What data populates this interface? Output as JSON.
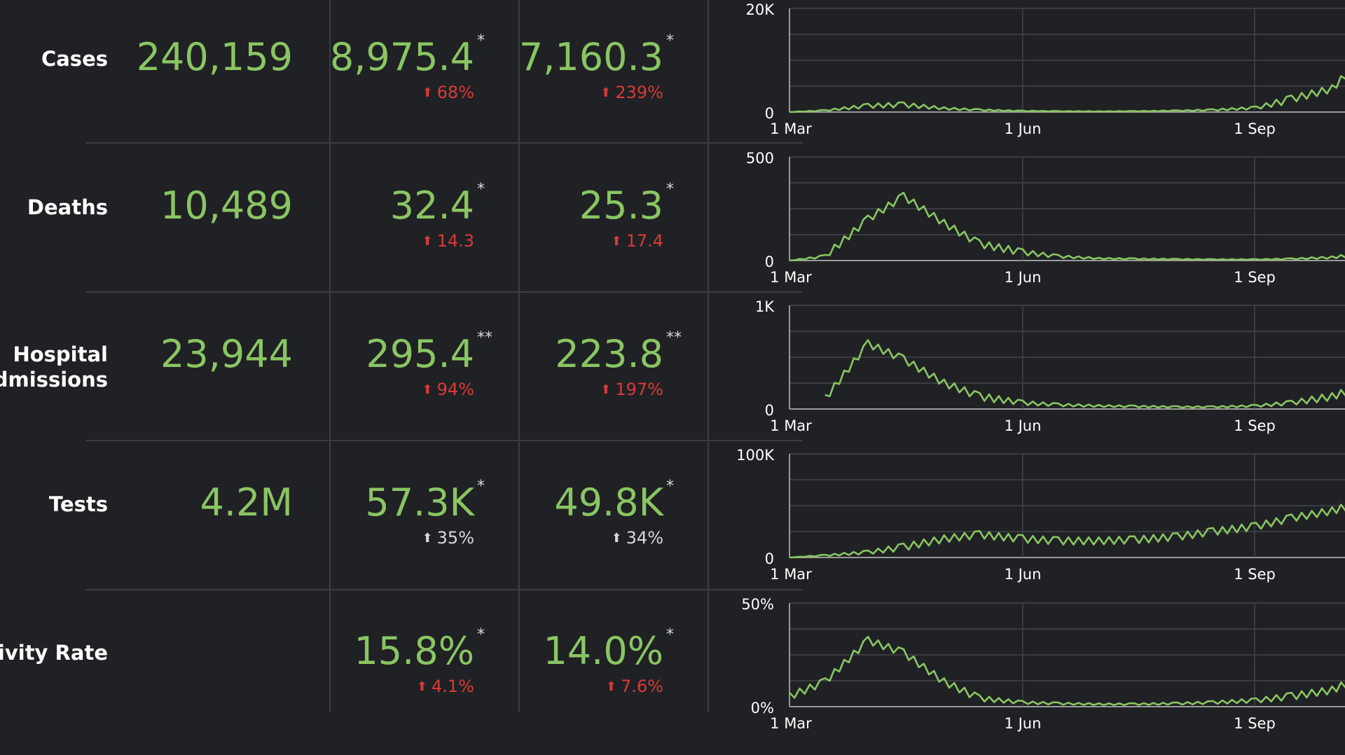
{
  "rows": [
    {
      "label": "Cases",
      "total": "240,159",
      "avg1": "8,975.4",
      "avg1_star": "*",
      "change1": "68%",
      "change1_color": "red",
      "avg2": "7,160.3",
      "avg2_star": "*",
      "change2": "239%",
      "change2_color": "red"
    },
    {
      "label": "Deaths",
      "total": "10,489",
      "avg1": "32.4",
      "avg1_star": "*",
      "change1": "14.3",
      "change1_color": "red",
      "avg2": "25.3",
      "avg2_star": "*",
      "change2": "17.4",
      "change2_color": "red"
    },
    {
      "label_line1": "Hospital",
      "label_line2": "Admissions",
      "total": "23,944",
      "avg1": "295.4",
      "avg1_star": "**",
      "change1": "94%",
      "change1_color": "red",
      "avg2": "223.8",
      "avg2_star": "**",
      "change2": "197%",
      "change2_color": "red"
    },
    {
      "label": "Tests",
      "total": "4.2M",
      "avg1": "57.3K",
      "avg1_star": "*",
      "change1": "35%",
      "change1_color": "grey",
      "avg2": "49.8K",
      "avg2_star": "*",
      "change2": "34%",
      "change2_color": "grey"
    },
    {
      "label": "Positivity Rate",
      "total": "",
      "avg1": "15.8%",
      "avg1_star": "*",
      "change1": "4.1%",
      "change1_color": "red",
      "avg2": "14.0%",
      "avg2_star": "*",
      "change2": "7.6%",
      "change2_color": "red"
    }
  ],
  "colors": {
    "background": "#202124",
    "value_green": "#8ac563",
    "increase_red": "#d93a3a",
    "neutral_grey": "#d8d8d8",
    "grid": "#4a4d52",
    "line": "#8ac563"
  },
  "icons": {
    "change_arrow": "up-arrow-icon"
  },
  "chart_data": [
    {
      "type": "line",
      "name": "cases-trend",
      "ytick_labels": [
        "0",
        "20K"
      ],
      "ylim": [
        0,
        20000
      ],
      "xtick_labels": [
        "1 Mar",
        "1 Jun",
        "1 Sep"
      ],
      "x": [
        "1 Mar",
        "15 Mar",
        "1 Apr",
        "15 Apr",
        "1 May",
        "15 May",
        "1 Jun",
        "15 Jun",
        "1 Jul",
        "15 Jul",
        "1 Aug",
        "15 Aug",
        "1 Sep",
        "15 Sep",
        "1 Oct",
        "8 Oct"
      ],
      "values": [
        0,
        300,
        1200,
        1400,
        700,
        400,
        200,
        150,
        120,
        150,
        250,
        400,
        800,
        2500,
        4500,
        8000
      ],
      "grid": true
    },
    {
      "type": "line",
      "name": "deaths-trend",
      "ytick_labels": [
        "0",
        "500"
      ],
      "ylim": [
        0,
        500
      ],
      "xtick_labels": [
        "1 Mar",
        "1 Jun",
        "1 Sep"
      ],
      "x": [
        "1 Mar",
        "15 Mar",
        "1 Apr",
        "15 Apr",
        "1 May",
        "15 May",
        "1 Jun",
        "15 Jun",
        "1 Jul",
        "15 Jul",
        "1 Aug",
        "15 Aug",
        "1 Sep",
        "15 Sep",
        "1 Oct",
        "8 Oct"
      ],
      "values": [
        0,
        20,
        200,
        310,
        180,
        80,
        40,
        20,
        10,
        8,
        6,
        5,
        5,
        8,
        15,
        25
      ],
      "grid": true
    },
    {
      "type": "line",
      "name": "hospital-admissions-trend",
      "ytick_labels": [
        "0",
        "1K"
      ],
      "ylim": [
        0,
        1000
      ],
      "xtick_labels": [
        "1 Mar",
        "1 Jun",
        "1 Sep"
      ],
      "x": [
        "15 Mar",
        "1 Apr",
        "15 Apr",
        "1 May",
        "15 May",
        "1 Jun",
        "15 Jun",
        "1 Jul",
        "15 Jul",
        "1 Aug",
        "15 Aug",
        "1 Sep",
        "15 Sep",
        "1 Oct",
        "8 Oct"
      ],
      "values": [
        100,
        630,
        480,
        250,
        120,
        60,
        40,
        30,
        25,
        20,
        20,
        30,
        60,
        120,
        180
      ],
      "grid": true
    },
    {
      "type": "line",
      "name": "tests-trend",
      "ytick_labels": [
        "0",
        "100K"
      ],
      "ylim": [
        0,
        100000
      ],
      "xtick_labels": [
        "1 Mar",
        "1 Jun",
        "1 Sep"
      ],
      "x": [
        "1 Mar",
        "15 Mar",
        "1 Apr",
        "15 Apr",
        "1 May",
        "15 May",
        "1 Jun",
        "15 Jun",
        "1 Jul",
        "15 Jul",
        "1 Aug",
        "15 Aug",
        "1 Sep",
        "15 Sep",
        "1 Oct",
        "8 Oct"
      ],
      "values": [
        0,
        2000,
        5000,
        10000,
        18000,
        22000,
        18000,
        16000,
        16000,
        17000,
        20000,
        25000,
        30000,
        38000,
        45000,
        50000
      ],
      "grid": true
    },
    {
      "type": "line",
      "name": "positivity-rate-trend",
      "ytick_labels": [
        "0%",
        "50%"
      ],
      "ylim": [
        0,
        50
      ],
      "xtick_labels": [
        "1 Mar",
        "1 Jun",
        "1 Sep"
      ],
      "x": [
        "1 Mar",
        "15 Mar",
        "1 Apr",
        "15 Apr",
        "1 May",
        "15 May",
        "1 Jun",
        "15 Jun",
        "1 Jul",
        "15 Jul",
        "1 Aug",
        "15 Aug",
        "1 Sep",
        "15 Sep",
        "1 Oct",
        "8 Oct"
      ],
      "values": [
        5,
        12,
        32,
        26,
        12,
        4,
        2,
        1.5,
        1.2,
        1.2,
        1.5,
        2,
        3,
        5,
        8,
        12
      ],
      "grid": true
    }
  ]
}
